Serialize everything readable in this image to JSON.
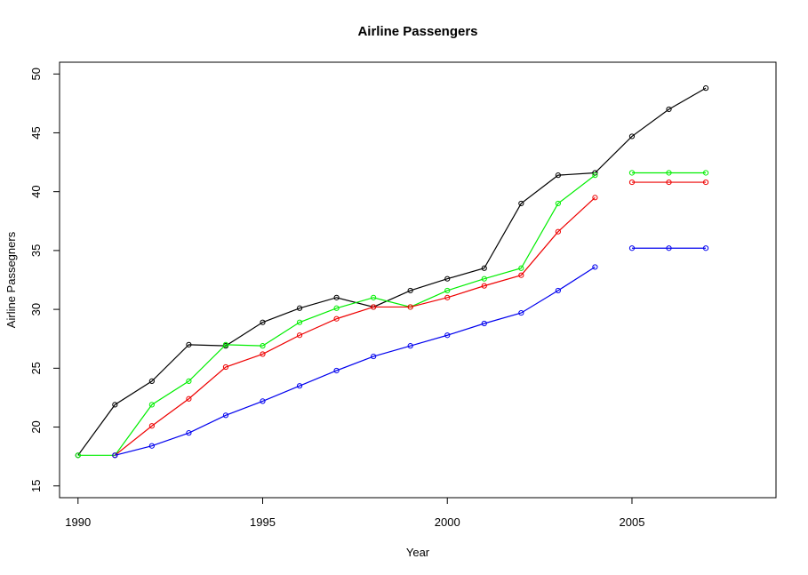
{
  "chart_data": {
    "type": "line",
    "title": "Airline Passengers",
    "xlabel": "Year",
    "ylabel": "Airline Passegners",
    "xlim": [
      1989.5,
      2008.9
    ],
    "ylim": [
      14,
      51
    ],
    "xticks": [
      1990,
      1995,
      2000,
      2005
    ],
    "yticks": [
      15,
      20,
      25,
      30,
      35,
      40,
      45,
      50
    ],
    "grid": false,
    "legend": "none",
    "series": [
      {
        "color": "#000000",
        "points": [
          [
            1990,
            17.6
          ],
          [
            1991,
            21.9
          ],
          [
            1992,
            23.9
          ],
          [
            1993,
            27.0
          ],
          [
            1994,
            26.9
          ],
          [
            1995,
            28.9
          ],
          [
            1996,
            30.1
          ],
          [
            1997,
            31.0
          ],
          [
            1998,
            30.2
          ],
          [
            1999,
            31.6
          ],
          [
            2000,
            32.6
          ],
          [
            2001,
            33.5
          ],
          [
            2002,
            39.0
          ],
          [
            2003,
            41.4
          ],
          [
            2004,
            41.6
          ],
          [
            2005,
            44.7
          ],
          [
            2006,
            47.0
          ],
          [
            2007,
            48.8
          ]
        ]
      },
      {
        "color": "#00ee00",
        "points": [
          [
            1990,
            17.6
          ],
          [
            1991,
            17.6
          ],
          [
            1992,
            21.9
          ],
          [
            1993,
            23.9
          ],
          [
            1994,
            27.0
          ],
          [
            1995,
            26.9
          ],
          [
            1996,
            28.9
          ],
          [
            1997,
            30.1
          ],
          [
            1998,
            31.0
          ],
          [
            1999,
            30.2
          ],
          [
            2000,
            31.6
          ],
          [
            2001,
            32.6
          ],
          [
            2002,
            33.5
          ],
          [
            2003,
            39.0
          ],
          [
            2004,
            41.4
          ]
        ],
        "forecast": [
          [
            2005,
            41.6
          ],
          [
            2006,
            41.6
          ],
          [
            2007,
            41.6
          ]
        ]
      },
      {
        "color": "#ee0000",
        "points": [
          [
            1991,
            17.6
          ],
          [
            1992,
            20.1
          ],
          [
            1993,
            22.4
          ],
          [
            1994,
            25.1
          ],
          [
            1995,
            26.2
          ],
          [
            1996,
            27.8
          ],
          [
            1997,
            29.2
          ],
          [
            1998,
            30.2
          ],
          [
            1999,
            30.2
          ],
          [
            2000,
            31.0
          ],
          [
            2001,
            32.0
          ],
          [
            2002,
            32.9
          ],
          [
            2003,
            36.6
          ],
          [
            2004,
            39.5
          ]
        ],
        "forecast": [
          [
            2005,
            40.8
          ],
          [
            2006,
            40.8
          ],
          [
            2007,
            40.8
          ]
        ]
      },
      {
        "color": "#0000ee",
        "points": [
          [
            1991,
            17.6
          ],
          [
            1992,
            18.4
          ],
          [
            1993,
            19.5
          ],
          [
            1994,
            21.0
          ],
          [
            1995,
            22.2
          ],
          [
            1996,
            23.5
          ],
          [
            1997,
            24.8
          ],
          [
            1998,
            26.0
          ],
          [
            1999,
            26.9
          ],
          [
            2000,
            27.8
          ],
          [
            2001,
            28.8
          ],
          [
            2002,
            29.7
          ],
          [
            2003,
            31.6
          ],
          [
            2004,
            33.6
          ]
        ],
        "forecast": [
          [
            2005,
            35.2
          ],
          [
            2006,
            35.2
          ],
          [
            2007,
            35.2
          ]
        ]
      }
    ]
  }
}
